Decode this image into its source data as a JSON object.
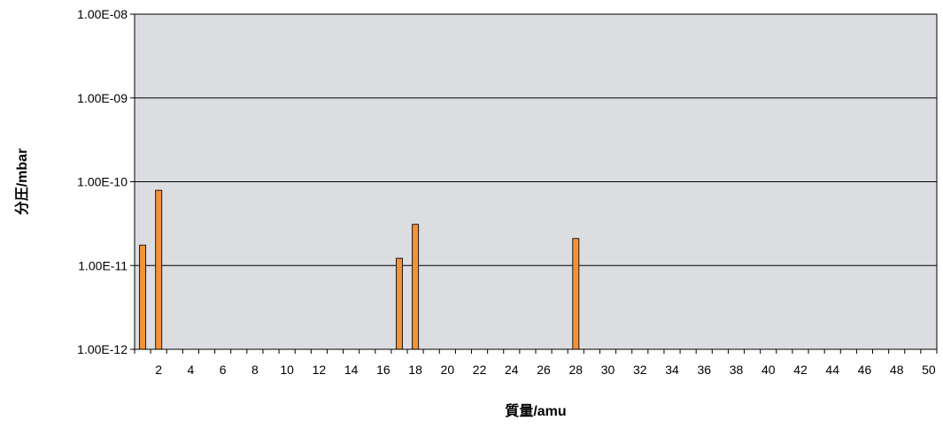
{
  "chart_data": {
    "type": "bar",
    "title": "",
    "xlabel": "質量/amu",
    "ylabel": "分圧/mbar",
    "y_scale": "log",
    "ylim": [
      1e-12,
      1e-08
    ],
    "y_ticks": [
      1e-12,
      1e-11,
      1e-10,
      1e-09,
      1e-08
    ],
    "y_tick_labels": [
      "1.00E-12",
      "1.00E-11",
      "1.00E-10",
      "1.00E-09",
      "1.00E-08"
    ],
    "x_range": [
      1,
      50
    ],
    "x_tick_labels": [
      "2",
      "4",
      "6",
      "8",
      "10",
      "12",
      "14",
      "16",
      "18",
      "20",
      "22",
      "24",
      "26",
      "28",
      "30",
      "32",
      "34",
      "36",
      "38",
      "40",
      "42",
      "44",
      "46",
      "48",
      "50"
    ],
    "grid": true,
    "legend": "none",
    "colors": {
      "plot_background": "#dcdde0",
      "bar_fill": "#f39237",
      "bar_stroke": "#1a1a1a",
      "gridline": "#000000"
    },
    "points": [
      {
        "x": 1,
        "y": 1.75e-11
      },
      {
        "x": 2,
        "y": 7.9e-11
      },
      {
        "x": 17,
        "y": 1.22e-11
      },
      {
        "x": 18,
        "y": 3.1e-11
      },
      {
        "x": 28,
        "y": 2.1e-11
      }
    ]
  }
}
